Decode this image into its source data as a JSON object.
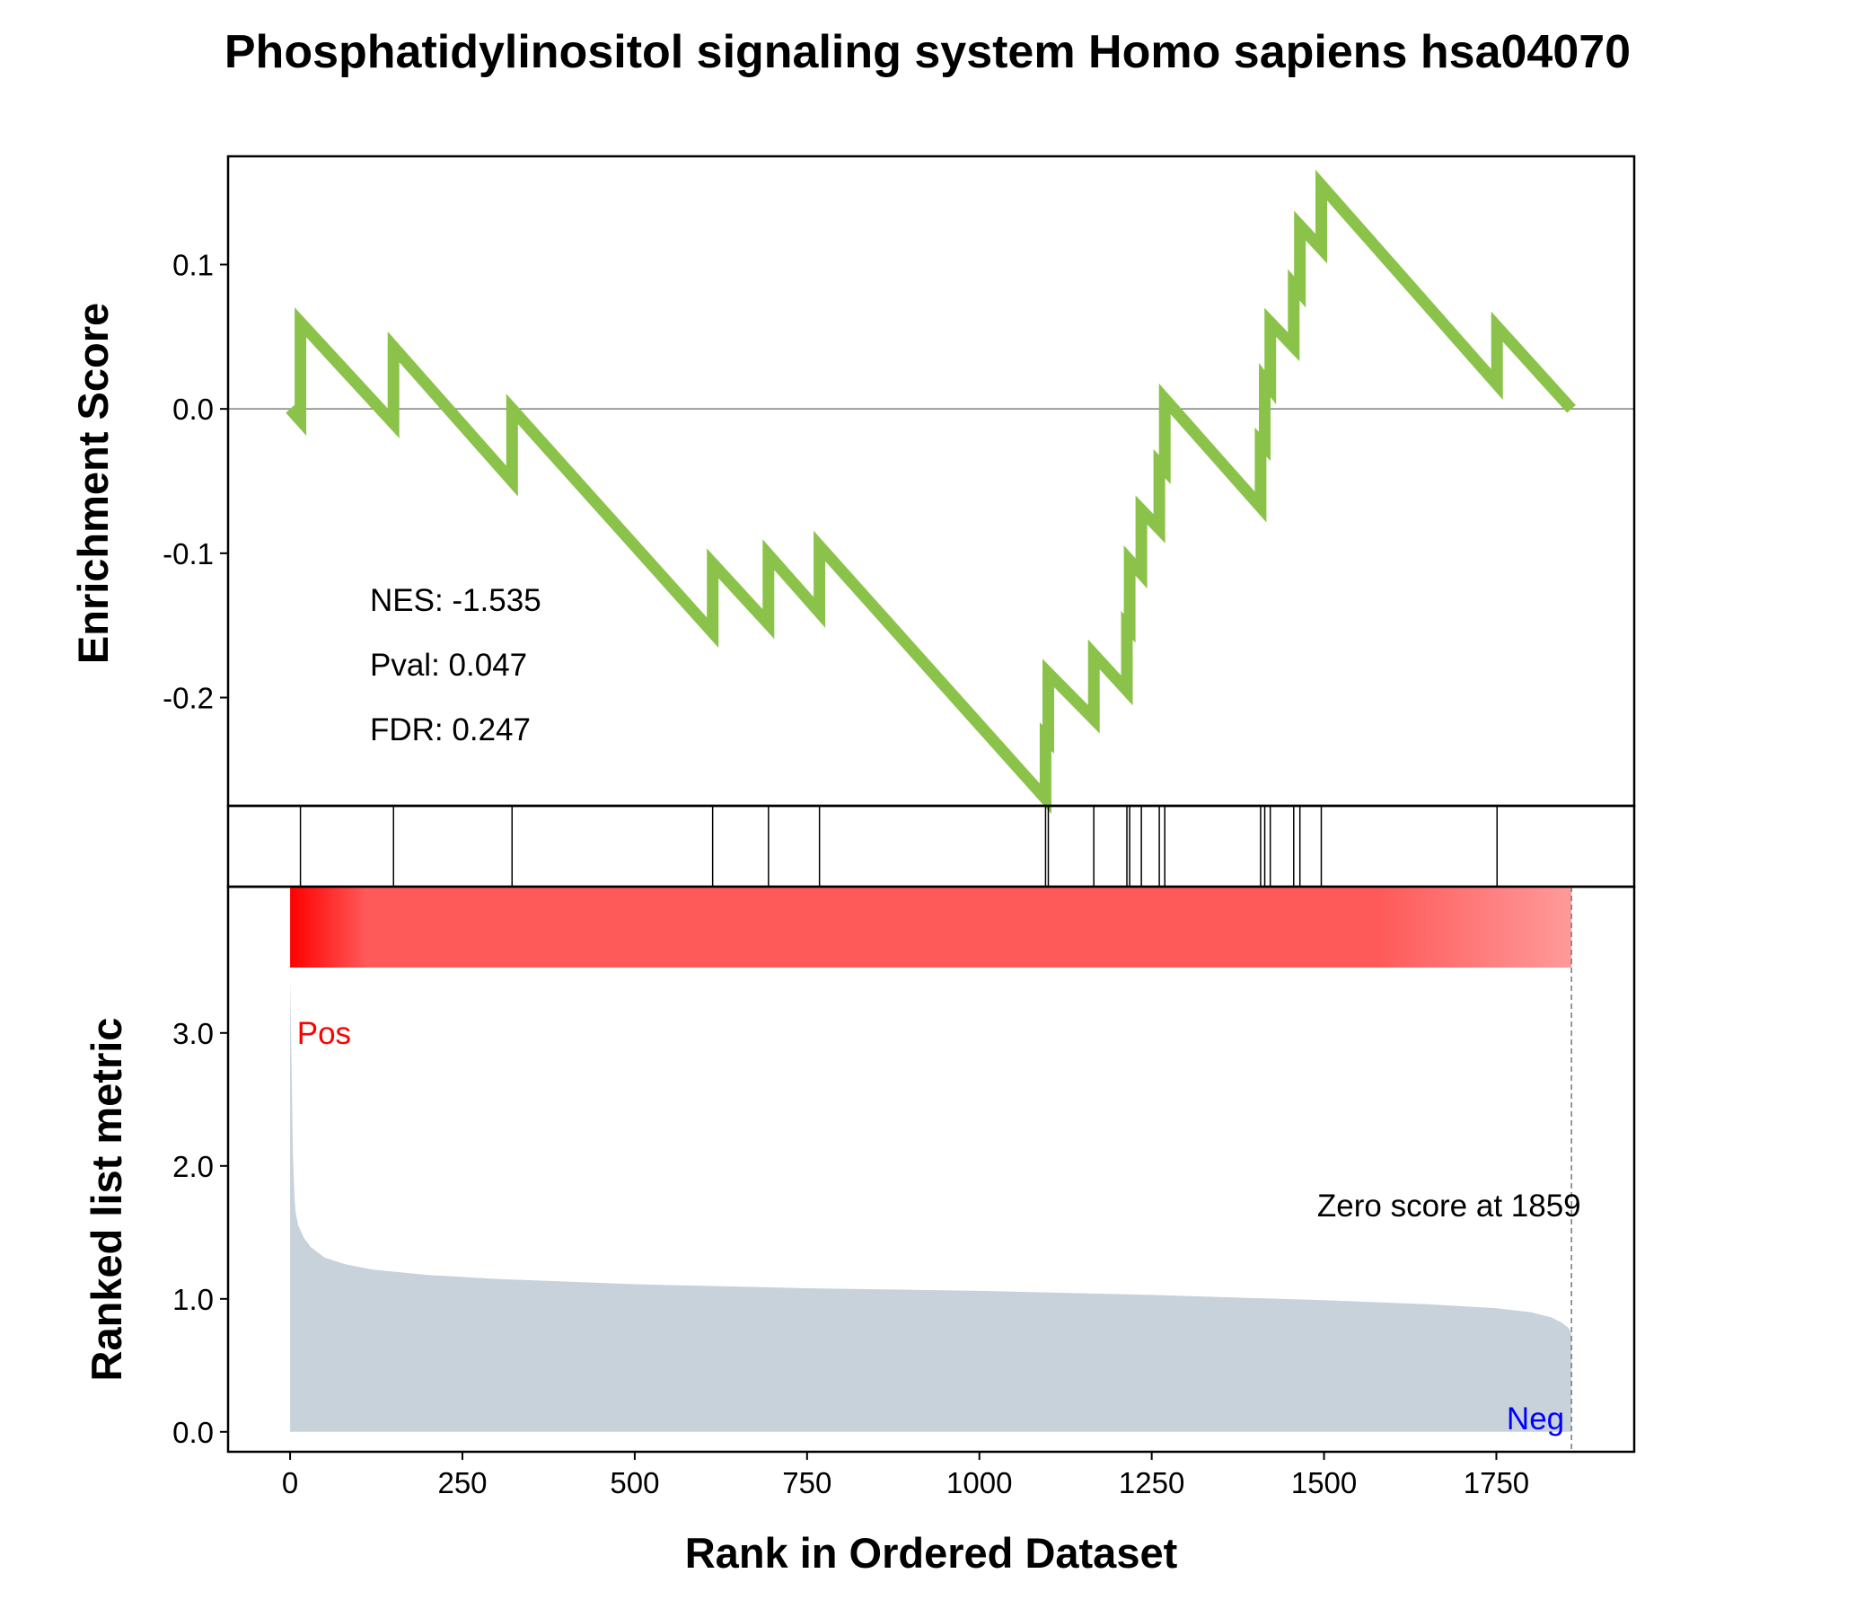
{
  "chart_data": {
    "type": "line",
    "title": "Phosphatidylinositol signaling system Homo sapiens hsa04070",
    "xlabel": "Rank in Ordered Dataset",
    "xlim": [
      -90,
      1950
    ],
    "x_ticks": [
      "0",
      "250",
      "500",
      "750",
      "1000",
      "1250",
      "1500",
      "1750"
    ],
    "x_tick_values": [
      0,
      250,
      500,
      750,
      1000,
      1250,
      1500,
      1750
    ],
    "enrichment_panel": {
      "ylabel": "Enrichment Score",
      "ylim": [
        -0.275,
        0.175
      ],
      "y_ticks": [
        "-0.2",
        "-0.1",
        "0.0",
        "0.1"
      ],
      "y_tick_values": [
        -0.2,
        -0.1,
        0.0,
        0.1
      ],
      "line_color": "#8bc34a",
      "zero_line": true,
      "x": [
        0,
        15,
        15,
        150,
        150,
        322,
        322,
        613,
        613,
        694,
        694,
        768,
        768,
        1096,
        1096,
        1100,
        1100,
        1166,
        1166,
        1214,
        1214,
        1218,
        1218,
        1235,
        1235,
        1261,
        1261,
        1269,
        1269,
        1408,
        1408,
        1414,
        1414,
        1422,
        1422,
        1456,
        1456,
        1465,
        1465,
        1496,
        1496,
        1751,
        1751,
        1859
      ],
      "y": [
        0.0,
        -0.008,
        0.06,
        -0.01,
        0.043,
        -0.05,
        0.0,
        -0.155,
        -0.107,
        -0.149,
        -0.101,
        -0.141,
        -0.095,
        -0.27,
        -0.227,
        -0.229,
        -0.183,
        -0.215,
        -0.17,
        -0.195,
        -0.15,
        -0.152,
        -0.105,
        -0.114,
        -0.07,
        -0.083,
        -0.038,
        -0.042,
        0.007,
        -0.068,
        -0.023,
        -0.026,
        0.02,
        0.015,
        0.06,
        0.043,
        0.086,
        0.081,
        0.127,
        0.111,
        0.155,
        0.017,
        0.057,
        0.0
      ],
      "stats": {
        "nes": "NES: -1.535",
        "pval": "Pval: 0.047",
        "fdr": "FDR: 0.247"
      }
    },
    "hits": [
      15,
      150,
      322,
      613,
      694,
      768,
      1096,
      1100,
      1166,
      1214,
      1218,
      1235,
      1261,
      1269,
      1408,
      1414,
      1422,
      1456,
      1465,
      1496,
      1751
    ],
    "heatmap_colors": {
      "start": "#ff0000",
      "mid": "#ff5a5a",
      "end": "#ff9a9a"
    },
    "metric_panel": {
      "ylabel": "Ranked list metric",
      "ylim": [
        -0.15,
        4.1
      ],
      "y_ticks": [
        "0.0",
        "1.0",
        "2.0",
        "3.0"
      ],
      "y_tick_values": [
        0.0,
        1.0,
        2.0,
        3.0
      ],
      "fill_color": "#c8d2da",
      "x": [
        0,
        2,
        4,
        6,
        8,
        12,
        20,
        30,
        50,
        80,
        120,
        200,
        300,
        500,
        750,
        1000,
        1250,
        1500,
        1650,
        1750,
        1800,
        1830,
        1845,
        1855,
        1859
      ],
      "values": [
        3.42,
        2.8,
        2.1,
        1.8,
        1.65,
        1.55,
        1.46,
        1.39,
        1.31,
        1.26,
        1.22,
        1.18,
        1.15,
        1.11,
        1.08,
        1.06,
        1.03,
        0.99,
        0.96,
        0.93,
        0.9,
        0.86,
        0.82,
        0.78,
        0.73
      ],
      "pos_label": "Pos",
      "neg_label": "Neg",
      "pos_color": "#ff0000",
      "neg_color": "#0000ff",
      "zero_score_text": "Zero score at 1859",
      "zero_score_x": 1859
    }
  }
}
